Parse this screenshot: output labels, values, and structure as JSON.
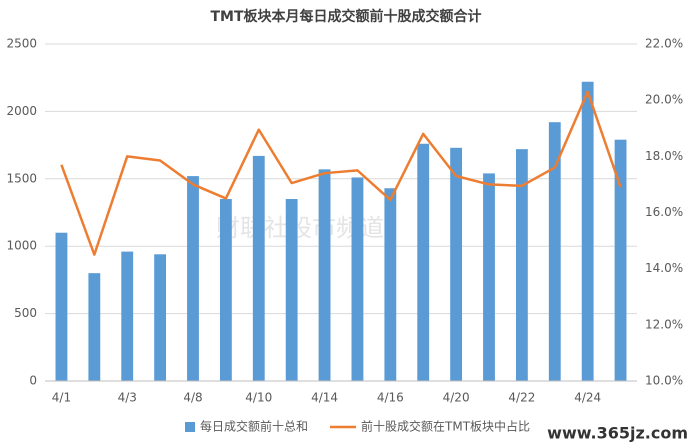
{
  "chart_data": {
    "type": "bar_line",
    "title": "TMT板块本月每日成交额前十股成交额合计",
    "categories": [
      "4/1",
      null,
      "4/3",
      null,
      "4/8",
      null,
      "4/10",
      null,
      "4/14",
      null,
      "4/16",
      null,
      "4/20",
      null,
      "4/22",
      null,
      "4/24",
      null
    ],
    "series": [
      {
        "name": "每日成交额前十总和",
        "color": "#5b9bd5",
        "type": "bar",
        "values": [
          1100,
          800,
          960,
          940,
          1520,
          1350,
          1670,
          1350,
          1570,
          1510,
          1430,
          1760,
          1730,
          1540,
          1720,
          1920,
          2220,
          1790
        ]
      },
      {
        "name": "前十股成交额在TMT板块中占比",
        "color": "#ed7d31",
        "type": "line",
        "axis": "y2",
        "values": [
          17.7,
          14.5,
          18.0,
          17.85,
          17.0,
          16.5,
          18.95,
          17.05,
          17.4,
          17.5,
          16.45,
          18.8,
          17.3,
          17.0,
          16.95,
          17.6,
          20.3,
          16.9
        ]
      }
    ],
    "ylim": [
      0,
      2500
    ],
    "yticks": [
      0,
      500,
      1000,
      1500,
      2000,
      2500
    ],
    "y2lim": [
      10,
      22
    ],
    "y2ticks": [
      {
        "value": 10,
        "label": "10.0%"
      },
      {
        "value": 12,
        "label": "12.0%"
      },
      {
        "value": 14,
        "label": "14.0%"
      },
      {
        "value": 16,
        "label": "16.0%"
      },
      {
        "value": 18,
        "label": "18.0%"
      },
      {
        "value": 20,
        "label": "20.0%"
      },
      {
        "value": 22,
        "label": "22.0%"
      }
    ],
    "grid": true,
    "legend": "bottom",
    "watermark": "财联社股市频道",
    "site": "www.365jz.com"
  }
}
